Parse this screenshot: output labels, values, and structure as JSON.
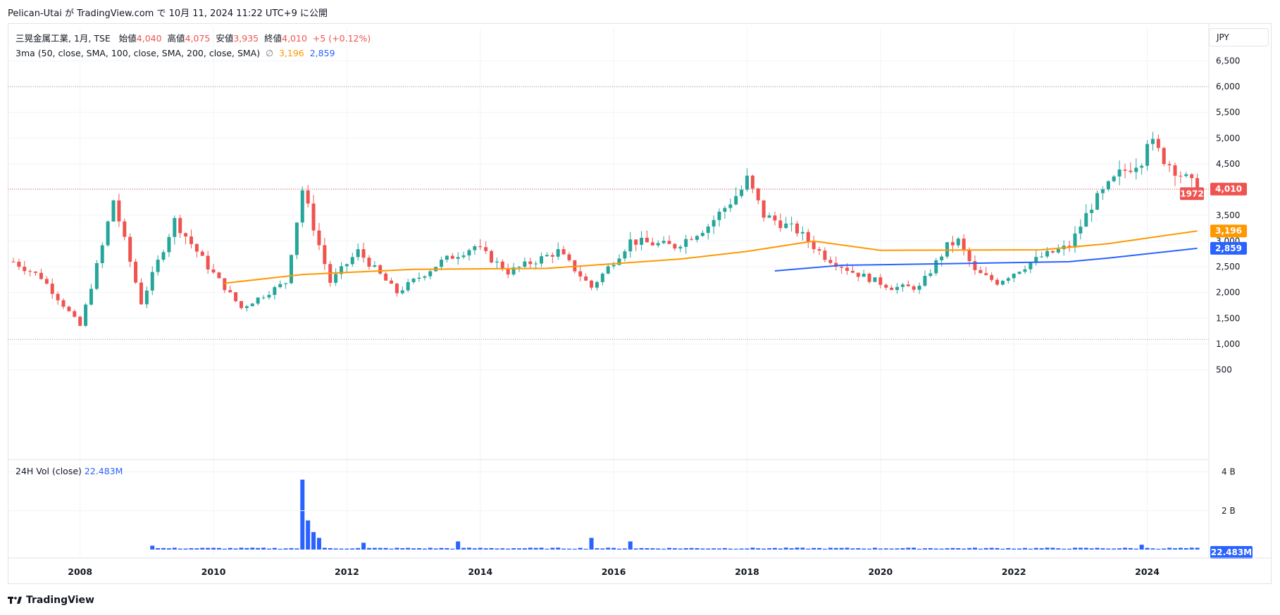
{
  "header": {
    "publish_line": "Pelican-Utai が TradingView.com で 10月 11, 2024 11:22 UTC+9 に公開"
  },
  "legend": {
    "symbol": "三晃金属工業, 1月, TSE",
    "open_label": "始値",
    "open": "4,040",
    "high_label": "高値",
    "high": "4,075",
    "low_label": "安値",
    "low": "3,935",
    "close_label": "終値",
    "close": "4,010",
    "change": "+5 (+0.12%)",
    "ma_label": "3ma (50, close, SMA, 100, close, SMA, 200, close, SMA)",
    "ma_null_icon": "∅",
    "ma_val_1": "3,196",
    "ma_val_2": "2,859"
  },
  "volume_legend": {
    "label": "24H Vol (close)",
    "value": "22.483M"
  },
  "currency": "JPY",
  "footer": {
    "brand": "TradingView"
  },
  "colors": {
    "up": "#26a69a",
    "down": "#ef5350",
    "ma_orange": "#ff9800",
    "ma_blue": "#2962ff",
    "volume": "#2962ff",
    "grid": "#f0f3fa"
  },
  "chart_data": [
    {
      "type": "candlestick",
      "interval": "1 month",
      "ylabel": "JPY",
      "ylim": [
        0,
        7000
      ],
      "y_ticks": [
        "500",
        "1,000",
        "1,500",
        "2,000",
        "2,500",
        "3,000",
        "3,500",
        "4,000",
        "4,500",
        "5,000",
        "5,500",
        "6,000",
        "6,500"
      ],
      "x_ticks": [
        "2008",
        "2010",
        "2012",
        "2014",
        "2016",
        "2018",
        "2020",
        "2022",
        "2024"
      ],
      "annotations": {
        "high_line": 6000,
        "low_line": 1090,
        "last_price": "4,010",
        "countdown": "1972"
      },
      "series_keypoints": [
        {
          "date": "2007-01",
          "close": 2600
        },
        {
          "date": "2007-06",
          "close": 2300
        },
        {
          "date": "2008-01",
          "close": 1350
        },
        {
          "date": "2008-05",
          "close": 2900
        },
        {
          "date": "2008-07",
          "close": 3800
        },
        {
          "date": "2008-12",
          "close": 1800
        },
        {
          "date": "2009-06",
          "close": 3400
        },
        {
          "date": "2009-12",
          "close": 2500
        },
        {
          "date": "2010-06",
          "close": 1700
        },
        {
          "date": "2011-02",
          "close": 2200
        },
        {
          "date": "2011-05",
          "close": 4000
        },
        {
          "date": "2011-10",
          "close": 2200
        },
        {
          "date": "2012-03",
          "close": 2800
        },
        {
          "date": "2012-10",
          "close": 2000
        },
        {
          "date": "2013-06",
          "close": 2600
        },
        {
          "date": "2013-12",
          "close": 2900
        },
        {
          "date": "2014-06",
          "close": 2400
        },
        {
          "date": "2015-03",
          "close": 2800
        },
        {
          "date": "2015-09",
          "close": 2100
        },
        {
          "date": "2016-04",
          "close": 3000
        },
        {
          "date": "2016-12",
          "close": 2900
        },
        {
          "date": "2017-06",
          "close": 3300
        },
        {
          "date": "2017-12",
          "close": 4000
        },
        {
          "date": "2018-01",
          "close": 4200
        },
        {
          "date": "2018-04",
          "close": 3500
        },
        {
          "date": "2018-10",
          "close": 3200
        },
        {
          "date": "2019-03",
          "close": 2700
        },
        {
          "date": "2019-08",
          "close": 2400
        },
        {
          "date": "2020-03",
          "close": 2100
        },
        {
          "date": "2020-08",
          "close": 2100
        },
        {
          "date": "2021-01",
          "close": 2900
        },
        {
          "date": "2021-03",
          "close": 3000
        },
        {
          "date": "2021-06",
          "close": 2400
        },
        {
          "date": "2021-10",
          "close": 2200
        },
        {
          "date": "2022-06",
          "close": 2700
        },
        {
          "date": "2022-11",
          "close": 2900
        },
        {
          "date": "2023-03",
          "close": 3700
        },
        {
          "date": "2023-08",
          "close": 4300
        },
        {
          "date": "2023-12",
          "close": 4600
        },
        {
          "date": "2024-01",
          "close": 5000
        },
        {
          "date": "2024-04",
          "close": 4600
        },
        {
          "date": "2024-07",
          "close": 4300
        },
        {
          "date": "2024-10",
          "close": 4010
        }
      ],
      "series": [
        {
          "values_kind": "SMA 50",
          "points": [
            {
              "date": "2010-03",
              "value": 2180
            },
            {
              "date": "2011-05",
              "value": 2350
            },
            {
              "date": "2013-01",
              "value": 2450
            },
            {
              "date": "2015-01",
              "value": 2470
            },
            {
              "date": "2017-01",
              "value": 2650
            },
            {
              "date": "2018-01",
              "value": 2800
            },
            {
              "date": "2019-01",
              "value": 3000
            },
            {
              "date": "2020-01",
              "value": 2820
            },
            {
              "date": "2022-06",
              "value": 2830
            },
            {
              "date": "2023-06",
              "value": 2950
            },
            {
              "date": "2024-10",
              "value": 3196
            }
          ]
        },
        {
          "values_kind": "SMA 100",
          "points": [
            {
              "date": "2018-06",
              "value": 2420
            },
            {
              "date": "2019-06",
              "value": 2530
            },
            {
              "date": "2021-01",
              "value": 2560
            },
            {
              "date": "2022-11",
              "value": 2600
            },
            {
              "date": "2023-06",
              "value": 2670
            },
            {
              "date": "2024-10",
              "value": 2859
            }
          ]
        }
      ]
    },
    {
      "type": "bar",
      "y_ticks": [
        "2 B",
        "4 B"
      ],
      "ylim": [
        0,
        4000000000
      ],
      "last_value": "22.483M",
      "spikes": [
        {
          "date": "2009-02",
          "value": 200000000
        },
        {
          "date": "2011-05",
          "value": 3600000000
        },
        {
          "date": "2011-06",
          "value": 1500000000
        },
        {
          "date": "2011-07",
          "value": 900000000
        },
        {
          "date": "2011-08",
          "value": 600000000
        },
        {
          "date": "2012-04",
          "value": 350000000
        },
        {
          "date": "2013-09",
          "value": 420000000
        },
        {
          "date": "2015-09",
          "value": 600000000
        },
        {
          "date": "2016-04",
          "value": 420000000
        },
        {
          "date": "2023-12",
          "value": 250000000
        }
      ]
    }
  ]
}
